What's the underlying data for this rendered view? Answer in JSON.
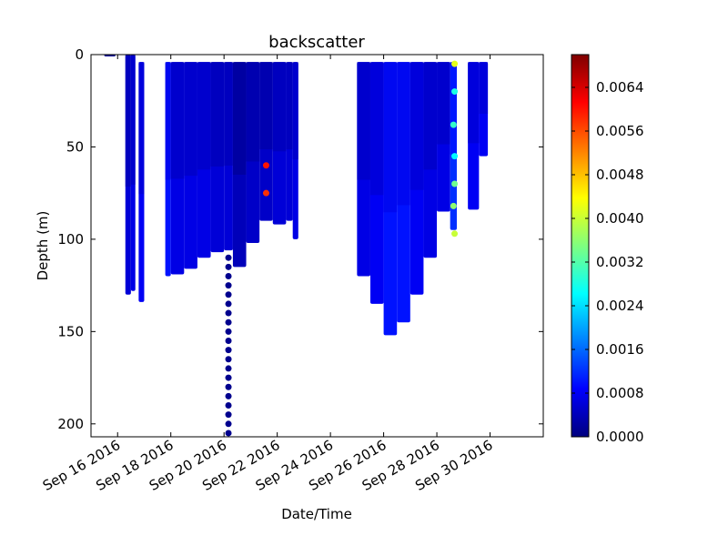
{
  "chart_data": {
    "type": "scatter",
    "title": "backscatter",
    "xlabel": "Date/Time",
    "ylabel": "Depth (m)",
    "x_type": "datetime",
    "xlim": [
      "2016-09-15",
      "2016-10-02"
    ],
    "ylim": [
      207,
      0
    ],
    "y_inverted": true,
    "grid": false,
    "x_ticks": [
      {
        "value": "2016-09-16",
        "label": "Sep 16 2016"
      },
      {
        "value": "2016-09-18",
        "label": "Sep 18 2016"
      },
      {
        "value": "2016-09-20",
        "label": "Sep 20 2016"
      },
      {
        "value": "2016-09-22",
        "label": "Sep 22 2016"
      },
      {
        "value": "2016-09-24",
        "label": "Sep 24 2016"
      },
      {
        "value": "2016-09-26",
        "label": "Sep 26 2016"
      },
      {
        "value": "2016-09-28",
        "label": "Sep 28 2016"
      },
      {
        "value": "2016-09-30",
        "label": "Sep 30 2016"
      }
    ],
    "y_ticks": [
      {
        "value": 0,
        "label": "0"
      },
      {
        "value": 50,
        "label": "50"
      },
      {
        "value": 100,
        "label": "100"
      },
      {
        "value": 150,
        "label": "150"
      },
      {
        "value": 200,
        "label": "200"
      }
    ],
    "colorbar": {
      "colormap": "jet",
      "min": 0.0,
      "max": 0.007,
      "ticks": [
        {
          "value": 0.0,
          "label": "0.0000"
        },
        {
          "value": 0.0008,
          "label": "0.0008"
        },
        {
          "value": 0.0016,
          "label": "0.0016"
        },
        {
          "value": 0.0024,
          "label": "0.0024"
        },
        {
          "value": 0.0032,
          "label": "0.0032"
        },
        {
          "value": 0.004,
          "label": "0.0040"
        },
        {
          "value": 0.0048,
          "label": "0.0048"
        },
        {
          "value": 0.0056,
          "label": "0.0056"
        },
        {
          "value": 0.0064,
          "label": "0.0064"
        }
      ],
      "colors": [
        "#00007f",
        "#0000ff",
        "#007fff",
        "#00ffff",
        "#7fff7f",
        "#ffff00",
        "#ff7f00",
        "#ff0000",
        "#7f0000"
      ]
    },
    "profile_segments": [
      {
        "start": "2016-09-15 12:00",
        "end": "2016-09-15 22:00",
        "top": 0,
        "bottom": 1,
        "backscatter": 0.0002
      },
      {
        "start": "2016-09-16 07:00",
        "end": "2016-09-16 12:00",
        "top": 0,
        "bottom": 130,
        "backscatter": 0.0006
      },
      {
        "start": "2016-09-16 12:00",
        "end": "2016-09-16 16:00",
        "top": 0,
        "bottom": 128,
        "backscatter": 0.0007
      },
      {
        "start": "2016-09-16 19:00",
        "end": "2016-09-17 00:00",
        "top": 4,
        "bottom": 134,
        "backscatter": 0.0008
      },
      {
        "start": "2016-09-17 19:00",
        "end": "2016-09-18 00:00",
        "top": 4,
        "bottom": 120,
        "backscatter": 0.001
      },
      {
        "start": "2016-09-18 00:00",
        "end": "2016-09-18 12:00",
        "top": 4,
        "bottom": 119,
        "backscatter": 0.0007
      },
      {
        "start": "2016-09-18 12:00",
        "end": "2016-09-19 00:00",
        "top": 4,
        "bottom": 116,
        "backscatter": 0.0007
      },
      {
        "start": "2016-09-19 00:00",
        "end": "2016-09-19 12:00",
        "top": 4,
        "bottom": 110,
        "backscatter": 0.0007
      },
      {
        "start": "2016-09-19 12:00",
        "end": "2016-09-20 00:00",
        "top": 4,
        "bottom": 107,
        "backscatter": 0.0006
      },
      {
        "start": "2016-09-20 00:00",
        "end": "2016-09-20 08:00",
        "top": 4,
        "bottom": 106,
        "backscatter": 0.0006
      },
      {
        "start": "2016-09-20 08:00",
        "end": "2016-09-20 20:00",
        "top": 4,
        "bottom": 115,
        "backscatter": 0.0004
      },
      {
        "start": "2016-09-20 20:00",
        "end": "2016-09-21 08:00",
        "top": 4,
        "bottom": 102,
        "backscatter": 0.0005
      },
      {
        "start": "2016-09-21 08:00",
        "end": "2016-09-21 20:00",
        "top": 4,
        "bottom": 90,
        "backscatter": 0.0005
      },
      {
        "start": "2016-09-21 20:00",
        "end": "2016-09-22 08:00",
        "top": 4,
        "bottom": 92,
        "backscatter": 0.0006
      },
      {
        "start": "2016-09-22 08:00",
        "end": "2016-09-22 14:00",
        "top": 4,
        "bottom": 90,
        "backscatter": 0.0006
      },
      {
        "start": "2016-09-22 14:00",
        "end": "2016-09-22 19:00",
        "top": 4,
        "bottom": 100,
        "backscatter": 0.0007
      },
      {
        "start": "2016-09-25 00:00",
        "end": "2016-09-25 12:00",
        "top": 4,
        "bottom": 120,
        "backscatter": 0.0007
      },
      {
        "start": "2016-09-25 12:00",
        "end": "2016-09-26 00:00",
        "top": 4,
        "bottom": 135,
        "backscatter": 0.0008
      },
      {
        "start": "2016-09-26 00:00",
        "end": "2016-09-26 12:00",
        "top": 4,
        "bottom": 152,
        "backscatter": 0.001
      },
      {
        "start": "2016-09-26 12:00",
        "end": "2016-09-27 00:00",
        "top": 4,
        "bottom": 145,
        "backscatter": 0.001
      },
      {
        "start": "2016-09-27 00:00",
        "end": "2016-09-27 12:00",
        "top": 4,
        "bottom": 130,
        "backscatter": 0.0008
      },
      {
        "start": "2016-09-27 12:00",
        "end": "2016-09-28 00:00",
        "top": 4,
        "bottom": 110,
        "backscatter": 0.0007
      },
      {
        "start": "2016-09-28 00:00",
        "end": "2016-09-28 12:00",
        "top": 4,
        "bottom": 85,
        "backscatter": 0.0007
      },
      {
        "start": "2016-09-28 12:00",
        "end": "2016-09-28 18:00",
        "top": 4,
        "bottom": 95,
        "backscatter": 0.0012
      },
      {
        "start": "2016-09-29 04:00",
        "end": "2016-09-29 14:00",
        "top": 4,
        "bottom": 84,
        "backscatter": 0.0008
      },
      {
        "start": "2016-09-29 14:00",
        "end": "2016-09-29 22:00",
        "top": 4,
        "bottom": 55,
        "backscatter": 0.0008
      }
    ],
    "points": [
      {
        "x": "2016-09-20 04:00",
        "depth": 110,
        "backscatter": 0.0001
      },
      {
        "x": "2016-09-20 04:00",
        "depth": 115,
        "backscatter": 0.0001
      },
      {
        "x": "2016-09-20 04:00",
        "depth": 120,
        "backscatter": 0.0001
      },
      {
        "x": "2016-09-20 04:00",
        "depth": 125,
        "backscatter": 0.0001
      },
      {
        "x": "2016-09-20 04:00",
        "depth": 130,
        "backscatter": 0.0001
      },
      {
        "x": "2016-09-20 04:00",
        "depth": 135,
        "backscatter": 0.0001
      },
      {
        "x": "2016-09-20 04:00",
        "depth": 140,
        "backscatter": 0.0001
      },
      {
        "x": "2016-09-20 04:00",
        "depth": 145,
        "backscatter": 0.0001
      },
      {
        "x": "2016-09-20 04:00",
        "depth": 150,
        "backscatter": 0.0001
      },
      {
        "x": "2016-09-20 04:00",
        "depth": 155,
        "backscatter": 0.0001
      },
      {
        "x": "2016-09-20 04:00",
        "depth": 160,
        "backscatter": 0.0001
      },
      {
        "x": "2016-09-20 04:00",
        "depth": 165,
        "backscatter": 0.0001
      },
      {
        "x": "2016-09-20 04:00",
        "depth": 170,
        "backscatter": 0.0001
      },
      {
        "x": "2016-09-20 04:00",
        "depth": 175,
        "backscatter": 0.0001
      },
      {
        "x": "2016-09-20 04:00",
        "depth": 180,
        "backscatter": 0.0001
      },
      {
        "x": "2016-09-20 04:00",
        "depth": 185,
        "backscatter": 0.0001
      },
      {
        "x": "2016-09-20 04:00",
        "depth": 190,
        "backscatter": 0.0001
      },
      {
        "x": "2016-09-20 04:00",
        "depth": 195,
        "backscatter": 0.0001
      },
      {
        "x": "2016-09-20 04:00",
        "depth": 200,
        "backscatter": 0.0001
      },
      {
        "x": "2016-09-20 04:00",
        "depth": 205,
        "backscatter": 0.0001
      },
      {
        "x": "2016-09-28 16:00",
        "depth": 5,
        "backscatter": 0.0042
      },
      {
        "x": "2016-09-28 16:00",
        "depth": 20,
        "backscatter": 0.0028
      },
      {
        "x": "2016-09-28 15:00",
        "depth": 38,
        "backscatter": 0.003
      },
      {
        "x": "2016-09-28 16:00",
        "depth": 55,
        "backscatter": 0.0026
      },
      {
        "x": "2016-09-28 16:00",
        "depth": 70,
        "backscatter": 0.0034
      },
      {
        "x": "2016-09-28 15:00",
        "depth": 82,
        "backscatter": 0.0036
      },
      {
        "x": "2016-09-28 16:00",
        "depth": 97,
        "backscatter": 0.004
      },
      {
        "x": "2016-09-21 14:00",
        "depth": 60,
        "backscatter": 0.006
      },
      {
        "x": "2016-09-21 14:00",
        "depth": 75,
        "backscatter": 0.0058
      }
    ]
  }
}
